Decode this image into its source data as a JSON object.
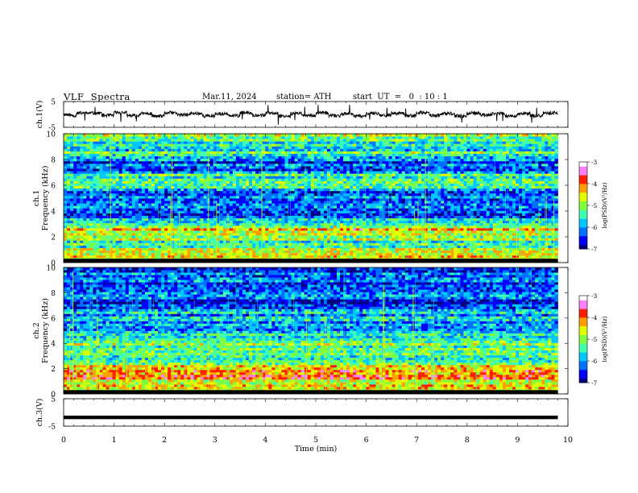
{
  "header": {
    "title": "VLF  Spectra",
    "date": "Mar.11, 2024",
    "station": "station= ATH",
    "start": "start  UT  =   0  : 10 : 1"
  },
  "chart_data": [
    {
      "type": "line",
      "panel": "ch1-waveform",
      "ylabel": "ch.1(V)",
      "ylim": [
        -5,
        5
      ],
      "yticks": [
        "5",
        "-5"
      ],
      "x": [
        0,
        0.25,
        0.5,
        0.75,
        1.0,
        1.25,
        1.5,
        1.75,
        2.0,
        2.25,
        2.5,
        2.75,
        3.0,
        3.25,
        3.5,
        3.75,
        4.0,
        4.25,
        4.5,
        4.75,
        5.0,
        5.25,
        5.5,
        5.75,
        6.0,
        6.25,
        6.5,
        6.75,
        7.0,
        7.25,
        7.5,
        7.75,
        8.0,
        8.25,
        8.5,
        8.75,
        9.0,
        9.25,
        9.5,
        9.75
      ],
      "series": [
        {
          "values": [
            0.1,
            -0.6,
            0.5,
            -0.4,
            0.7,
            -0.5,
            0.3,
            -0.7,
            0.6,
            -0.2,
            0.4,
            -0.6,
            0.2,
            -0.5,
            0.6,
            -0.3,
            0.5,
            -0.6,
            0.3,
            -0.4,
            0.6,
            -0.5,
            0.2,
            -0.7,
            0.5,
            -0.3,
            0.4,
            -0.5,
            0.6,
            -0.4,
            0.3,
            -0.6,
            0.5,
            -0.2,
            0.4,
            -0.6,
            0.3,
            -0.5,
            0.5,
            -0.3
          ]
        }
      ]
    },
    {
      "type": "heatmap",
      "panel": "ch1-spectrogram",
      "title": "ch.1",
      "ylabel": "Frequency  (kHz)",
      "ylim": [
        0,
        10
      ],
      "yticks": [
        "0",
        "2",
        "4",
        "6",
        "8",
        "10"
      ],
      "colorbar": {
        "label": "log(PSD)(V²/Hz)",
        "range": [
          -7,
          -3
        ],
        "ticks": [
          "-3",
          "-4",
          "-5",
          "-6",
          "-7"
        ]
      },
      "frequency_khz": [
        0.5,
        1.5,
        2.5,
        3.5,
        4.5,
        5.5,
        6.5,
        7.5,
        8.5,
        9.5
      ],
      "log_psd": [
        -4.5,
        -5.5,
        -4.3,
        -6.0,
        -6.5,
        -6.0,
        -5.0,
        -6.5,
        -5.5,
        -5.3
      ]
    },
    {
      "type": "heatmap",
      "panel": "ch2-spectrogram",
      "title": "ch.2",
      "ylabel": "Frequency  (kHz)",
      "ylim": [
        0,
        10
      ],
      "yticks": [
        "0",
        "2",
        "4",
        "6",
        "8",
        "10"
      ],
      "colorbar": {
        "label": "log(PSD)(V²/Hz)",
        "range": [
          -7,
          -3
        ],
        "ticks": [
          "-3",
          "-4",
          "-5",
          "-6",
          "-7"
        ]
      },
      "frequency_khz": [
        0.5,
        1.5,
        2.5,
        3.5,
        4.5,
        5.5,
        6.5,
        7.5,
        8.5,
        9.5
      ],
      "log_psd": [
        -4.8,
        -4.2,
        -5.0,
        -5.0,
        -5.6,
        -6.0,
        -6.0,
        -6.5,
        -6.3,
        -6.2
      ]
    },
    {
      "type": "line",
      "panel": "ch3-waveform",
      "ylabel": "ch.3(V)",
      "ylim": [
        -5,
        5
      ],
      "yticks": [
        "5",
        "-5"
      ],
      "x": [
        0,
        9.8
      ],
      "series": [
        {
          "values": [
            -1.8,
            -1.8
          ]
        }
      ]
    }
  ],
  "time_axis": {
    "xlabel": "Time  (min)",
    "xlim": [
      0,
      10
    ],
    "ticks": [
      "0",
      "1",
      "2",
      "3",
      "4",
      "5",
      "6",
      "7",
      "8",
      "9",
      "10"
    ],
    "data_end": 9.8
  },
  "colors": {
    "colormap": [
      "#000080",
      "#0000ff",
      "#0070ff",
      "#00c8ff",
      "#40ffb0",
      "#80ff40",
      "#e0ff00",
      "#ffa000",
      "#ff2000",
      "#ff80ff",
      "#ffffff"
    ],
    "trace": "#000000"
  }
}
